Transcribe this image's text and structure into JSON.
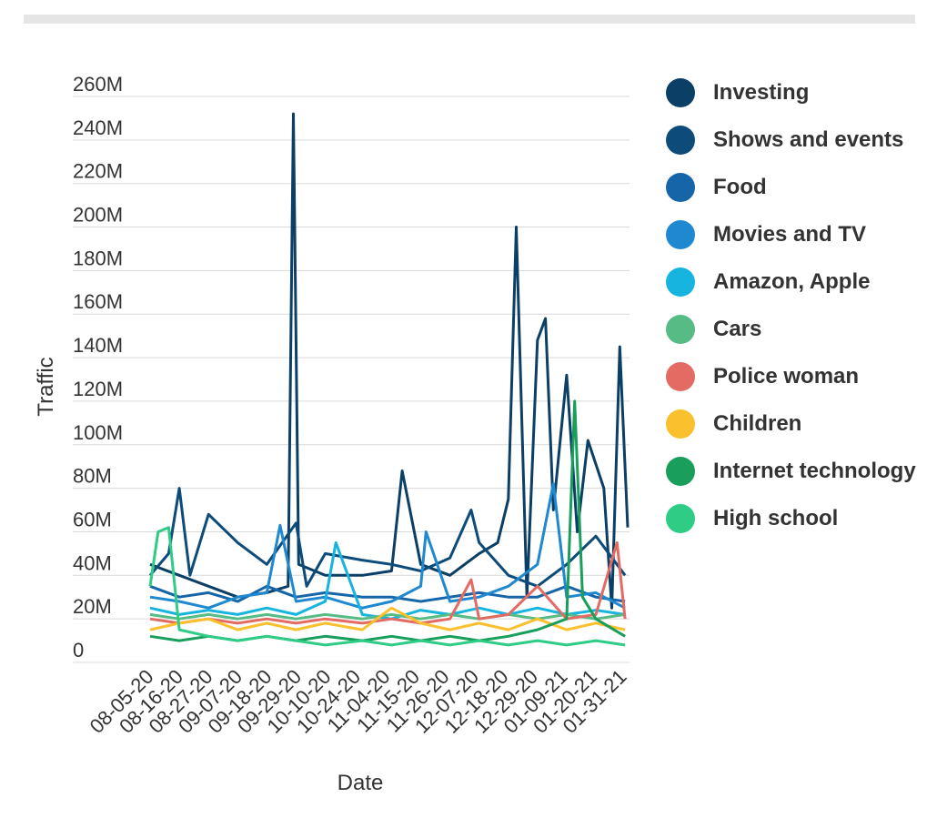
{
  "chart_data": {
    "type": "line",
    "xlabel": "Date",
    "ylabel": "Traffic",
    "ylim": [
      0,
      260000000
    ],
    "yticks": [
      "0",
      "20M",
      "40M",
      "60M",
      "80M",
      "100M",
      "120M",
      "140M",
      "160M",
      "180M",
      "200M",
      "220M",
      "240M",
      "260M"
    ],
    "xtick_labels": [
      "08-05-20",
      "08-16-20",
      "08-27-20",
      "09-07-20",
      "09-18-20",
      "09-29-20",
      "10-10-20",
      "10-24-20",
      "11-04-20",
      "11-15-20",
      "11-26-20",
      "12-07-20",
      "12-18-20",
      "12-29-20",
      "01-09-21",
      "01-20-21",
      "01-31-21"
    ],
    "x_start": "2020-08-05",
    "x_end": "2021-02-01",
    "grid": true,
    "legend_position": "right",
    "series": [
      {
        "name": "Investing",
        "color": "#0b3f66",
        "points": [
          [
            "2020-08-05",
            45000000
          ],
          [
            "2020-08-16",
            40000000
          ],
          [
            "2020-08-27",
            35000000
          ],
          [
            "2020-09-07",
            30000000
          ],
          [
            "2020-09-18",
            32000000
          ],
          [
            "2020-09-26",
            35000000
          ],
          [
            "2020-09-28",
            252000000
          ],
          [
            "2020-09-30",
            45000000
          ],
          [
            "2020-10-10",
            40000000
          ],
          [
            "2020-10-24",
            40000000
          ],
          [
            "2020-11-04",
            42000000
          ],
          [
            "2020-11-08",
            88000000
          ],
          [
            "2020-11-15",
            45000000
          ],
          [
            "2020-11-26",
            40000000
          ],
          [
            "2020-12-07",
            50000000
          ],
          [
            "2020-12-14",
            55000000
          ],
          [
            "2020-12-18",
            75000000
          ],
          [
            "2020-12-21",
            200000000
          ],
          [
            "2020-12-25",
            30000000
          ],
          [
            "2020-12-29",
            148000000
          ],
          [
            "2021-01-01",
            158000000
          ],
          [
            "2021-01-04",
            70000000
          ],
          [
            "2021-01-09",
            132000000
          ],
          [
            "2021-01-13",
            60000000
          ],
          [
            "2021-01-17",
            102000000
          ],
          [
            "2021-01-23",
            80000000
          ],
          [
            "2021-01-26",
            25000000
          ],
          [
            "2021-01-29",
            145000000
          ],
          [
            "2021-02-01",
            62000000
          ]
        ]
      },
      {
        "name": "Shows and events",
        "color": "#0d4b7a",
        "points": [
          [
            "2020-08-05",
            40000000
          ],
          [
            "2020-08-12",
            50000000
          ],
          [
            "2020-08-16",
            80000000
          ],
          [
            "2020-08-20",
            40000000
          ],
          [
            "2020-08-27",
            68000000
          ],
          [
            "2020-09-07",
            55000000
          ],
          [
            "2020-09-18",
            45000000
          ],
          [
            "2020-09-29",
            64000000
          ],
          [
            "2020-10-03",
            35000000
          ],
          [
            "2020-10-10",
            50000000
          ],
          [
            "2020-10-24",
            47000000
          ],
          [
            "2020-11-04",
            45000000
          ],
          [
            "2020-11-15",
            42000000
          ],
          [
            "2020-11-26",
            48000000
          ],
          [
            "2020-12-04",
            70000000
          ],
          [
            "2020-12-07",
            55000000
          ],
          [
            "2020-12-18",
            40000000
          ],
          [
            "2020-12-29",
            35000000
          ],
          [
            "2021-01-09",
            45000000
          ],
          [
            "2021-01-20",
            58000000
          ],
          [
            "2021-01-31",
            40000000
          ]
        ]
      },
      {
        "name": "Food",
        "color": "#1565a8",
        "points": [
          [
            "2020-08-05",
            35000000
          ],
          [
            "2020-08-16",
            30000000
          ],
          [
            "2020-08-27",
            32000000
          ],
          [
            "2020-09-07",
            28000000
          ],
          [
            "2020-09-18",
            35000000
          ],
          [
            "2020-09-29",
            30000000
          ],
          [
            "2020-10-10",
            32000000
          ],
          [
            "2020-10-24",
            30000000
          ],
          [
            "2020-11-04",
            30000000
          ],
          [
            "2020-11-15",
            28000000
          ],
          [
            "2020-11-26",
            30000000
          ],
          [
            "2020-12-07",
            32000000
          ],
          [
            "2020-12-18",
            30000000
          ],
          [
            "2020-12-29",
            30000000
          ],
          [
            "2021-01-09",
            35000000
          ],
          [
            "2021-01-20",
            30000000
          ],
          [
            "2021-01-31",
            28000000
          ]
        ]
      },
      {
        "name": "Movies and TV",
        "color": "#1e88d0",
        "points": [
          [
            "2020-08-05",
            30000000
          ],
          [
            "2020-08-16",
            28000000
          ],
          [
            "2020-08-27",
            25000000
          ],
          [
            "2020-09-07",
            30000000
          ],
          [
            "2020-09-18",
            32000000
          ],
          [
            "2020-09-23",
            63000000
          ],
          [
            "2020-09-29",
            28000000
          ],
          [
            "2020-10-10",
            30000000
          ],
          [
            "2020-10-24",
            25000000
          ],
          [
            "2020-11-04",
            28000000
          ],
          [
            "2020-11-15",
            35000000
          ],
          [
            "2020-11-17",
            60000000
          ],
          [
            "2020-11-26",
            28000000
          ],
          [
            "2020-12-07",
            30000000
          ],
          [
            "2020-12-18",
            35000000
          ],
          [
            "2020-12-29",
            45000000
          ],
          [
            "2021-01-04",
            82000000
          ],
          [
            "2021-01-09",
            30000000
          ],
          [
            "2021-01-20",
            32000000
          ],
          [
            "2021-01-31",
            25000000
          ]
        ]
      },
      {
        "name": "Amazon, Apple",
        "color": "#16b4de",
        "points": [
          [
            "2020-08-05",
            25000000
          ],
          [
            "2020-08-16",
            22000000
          ],
          [
            "2020-08-27",
            24000000
          ],
          [
            "2020-09-07",
            22000000
          ],
          [
            "2020-09-18",
            25000000
          ],
          [
            "2020-09-29",
            22000000
          ],
          [
            "2020-10-10",
            28000000
          ],
          [
            "2020-10-14",
            55000000
          ],
          [
            "2020-10-24",
            22000000
          ],
          [
            "2020-11-04",
            20000000
          ],
          [
            "2020-11-15",
            24000000
          ],
          [
            "2020-11-26",
            22000000
          ],
          [
            "2020-12-07",
            25000000
          ],
          [
            "2020-12-18",
            22000000
          ],
          [
            "2020-12-29",
            25000000
          ],
          [
            "2021-01-09",
            22000000
          ],
          [
            "2021-01-20",
            24000000
          ],
          [
            "2021-01-31",
            22000000
          ]
        ]
      },
      {
        "name": "Cars",
        "color": "#56bb85",
        "points": [
          [
            "2020-08-05",
            22000000
          ],
          [
            "2020-08-16",
            20000000
          ],
          [
            "2020-08-27",
            22000000
          ],
          [
            "2020-09-07",
            20000000
          ],
          [
            "2020-09-18",
            22000000
          ],
          [
            "2020-09-29",
            20000000
          ],
          [
            "2020-10-10",
            22000000
          ],
          [
            "2020-10-24",
            20000000
          ],
          [
            "2020-11-04",
            22000000
          ],
          [
            "2020-11-15",
            20000000
          ],
          [
            "2020-11-26",
            22000000
          ],
          [
            "2020-12-07",
            20000000
          ],
          [
            "2020-12-18",
            22000000
          ],
          [
            "2020-12-29",
            20000000
          ],
          [
            "2021-01-09",
            22000000
          ],
          [
            "2021-01-20",
            20000000
          ],
          [
            "2021-01-31",
            22000000
          ]
        ]
      },
      {
        "name": "Police woman",
        "color": "#e36b63",
        "points": [
          [
            "2020-08-05",
            20000000
          ],
          [
            "2020-08-16",
            18000000
          ],
          [
            "2020-08-27",
            20000000
          ],
          [
            "2020-09-07",
            18000000
          ],
          [
            "2020-09-18",
            20000000
          ],
          [
            "2020-09-29",
            18000000
          ],
          [
            "2020-10-10",
            20000000
          ],
          [
            "2020-10-24",
            18000000
          ],
          [
            "2020-11-04",
            20000000
          ],
          [
            "2020-11-15",
            18000000
          ],
          [
            "2020-11-26",
            20000000
          ],
          [
            "2020-12-04",
            38000000
          ],
          [
            "2020-12-07",
            20000000
          ],
          [
            "2020-12-18",
            22000000
          ],
          [
            "2020-12-29",
            35000000
          ],
          [
            "2021-01-09",
            20000000
          ],
          [
            "2021-01-20",
            22000000
          ],
          [
            "2021-01-28",
            55000000
          ],
          [
            "2021-01-31",
            20000000
          ]
        ]
      },
      {
        "name": "Children",
        "color": "#fbc02d",
        "points": [
          [
            "2020-08-05",
            15000000
          ],
          [
            "2020-08-16",
            18000000
          ],
          [
            "2020-08-27",
            20000000
          ],
          [
            "2020-09-07",
            15000000
          ],
          [
            "2020-09-18",
            18000000
          ],
          [
            "2020-09-29",
            15000000
          ],
          [
            "2020-10-10",
            18000000
          ],
          [
            "2020-10-24",
            15000000
          ],
          [
            "2020-11-04",
            25000000
          ],
          [
            "2020-11-15",
            18000000
          ],
          [
            "2020-11-26",
            15000000
          ],
          [
            "2020-12-07",
            18000000
          ],
          [
            "2020-12-18",
            15000000
          ],
          [
            "2020-12-29",
            20000000
          ],
          [
            "2021-01-09",
            15000000
          ],
          [
            "2021-01-20",
            18000000
          ],
          [
            "2021-01-31",
            15000000
          ]
        ]
      },
      {
        "name": "Internet technology",
        "color": "#1a9e5c",
        "points": [
          [
            "2020-08-05",
            12000000
          ],
          [
            "2020-08-16",
            10000000
          ],
          [
            "2020-08-27",
            12000000
          ],
          [
            "2020-09-07",
            10000000
          ],
          [
            "2020-09-18",
            12000000
          ],
          [
            "2020-09-29",
            10000000
          ],
          [
            "2020-10-10",
            12000000
          ],
          [
            "2020-10-24",
            10000000
          ],
          [
            "2020-11-04",
            12000000
          ],
          [
            "2020-11-15",
            10000000
          ],
          [
            "2020-11-26",
            12000000
          ],
          [
            "2020-12-07",
            10000000
          ],
          [
            "2020-12-18",
            12000000
          ],
          [
            "2020-12-29",
            15000000
          ],
          [
            "2021-01-09",
            20000000
          ],
          [
            "2021-01-12",
            120000000
          ],
          [
            "2021-01-15",
            30000000
          ],
          [
            "2021-01-20",
            20000000
          ],
          [
            "2021-01-31",
            12000000
          ]
        ]
      },
      {
        "name": "High school",
        "color": "#2fcc86",
        "points": [
          [
            "2020-08-05",
            35000000
          ],
          [
            "2020-08-08",
            60000000
          ],
          [
            "2020-08-12",
            62000000
          ],
          [
            "2020-08-16",
            15000000
          ],
          [
            "2020-08-27",
            12000000
          ],
          [
            "2020-09-07",
            10000000
          ],
          [
            "2020-09-18",
            12000000
          ],
          [
            "2020-09-29",
            10000000
          ],
          [
            "2020-10-10",
            8000000
          ],
          [
            "2020-10-24",
            10000000
          ],
          [
            "2020-11-04",
            8000000
          ],
          [
            "2020-11-15",
            10000000
          ],
          [
            "2020-11-26",
            8000000
          ],
          [
            "2020-12-07",
            10000000
          ],
          [
            "2020-12-18",
            8000000
          ],
          [
            "2020-12-29",
            10000000
          ],
          [
            "2021-01-09",
            8000000
          ],
          [
            "2021-01-20",
            10000000
          ],
          [
            "2021-01-31",
            8000000
          ]
        ]
      }
    ]
  }
}
